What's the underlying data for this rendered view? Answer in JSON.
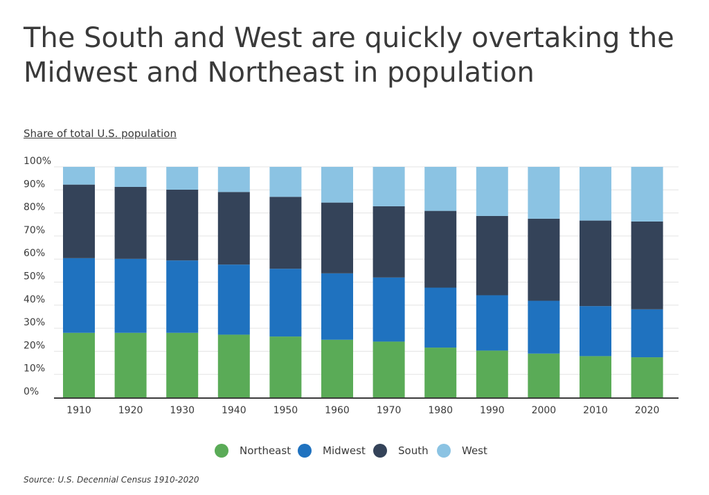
{
  "title": "The South and West are quickly overtaking the Midwest and Northeast in population",
  "source": "Source:  U.S. Decennial Census 1910-2020",
  "chart_data": {
    "type": "bar",
    "stacked": true,
    "ylabel": "Share of total U.S. population",
    "ylim": [
      0,
      100
    ],
    "yticks": [
      "0%",
      "10%",
      "20%",
      "30%",
      "40%",
      "50%",
      "60%",
      "70%",
      "80%",
      "90%",
      "100%"
    ],
    "categories": [
      "1910",
      "1920",
      "1930",
      "1940",
      "1950",
      "1960",
      "1970",
      "1980",
      "1990",
      "2000",
      "2010",
      "2020"
    ],
    "grid": true,
    "legend": "bottom",
    "series": [
      {
        "name": "Northeast",
        "color": "#5aab57",
        "values": [
          28.0,
          28.0,
          28.0,
          27.2,
          26.4,
          25.0,
          24.2,
          21.6,
          20.3,
          19.0,
          17.9,
          17.4
        ]
      },
      {
        "name": "Midwest",
        "color": "#1f72bf",
        "values": [
          32.4,
          32.1,
          31.4,
          30.4,
          29.4,
          28.8,
          27.8,
          26.0,
          24.0,
          22.9,
          21.7,
          20.8
        ]
      },
      {
        "name": "South",
        "color": "#344359",
        "values": [
          31.9,
          31.2,
          30.7,
          31.5,
          31.2,
          30.7,
          30.9,
          33.3,
          34.4,
          35.6,
          37.1,
          38.1
        ]
      },
      {
        "name": "West",
        "color": "#8bc3e3",
        "values": [
          7.7,
          8.7,
          9.9,
          10.9,
          13.0,
          15.5,
          17.1,
          19.1,
          21.3,
          22.5,
          23.3,
          23.7
        ]
      }
    ]
  }
}
